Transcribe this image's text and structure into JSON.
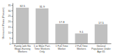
{
  "chart_data": {
    "type": "bar",
    "categories": [
      "Family with No\nWage-Earning\nWorkers",
      "1 or More Part-\nTime Workers\nOnly",
      "1 Full-Time\nWorker",
      "2 Full-Time\nWorkers",
      "General\nPopulation Under\nAge 65"
    ],
    "values": [
      32.5,
      31.9,
      17.8,
      9.1,
      17.5
    ],
    "color": "#c0c0c0",
    "ylabel": "Uninsured Rates (Percent)",
    "ylim": [
      0,
      37
    ],
    "yticks": [
      0,
      5,
      10,
      15,
      20,
      25,
      30,
      35
    ],
    "grid": false,
    "data_labels": true
  }
}
